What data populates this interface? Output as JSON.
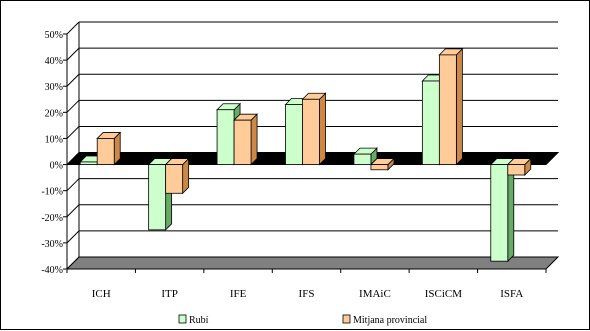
{
  "chart_data": {
    "type": "bar",
    "style": "3d-clustered-column",
    "categories": [
      "ICH",
      "ITP",
      "IFE",
      "IFS",
      "IMAiC",
      "ISCiCM",
      "ISFA"
    ],
    "series": [
      {
        "name": "Rubí",
        "values": [
          1,
          -25,
          21,
          23,
          4,
          32,
          -37
        ],
        "color": "#ccffcc",
        "side": "#66aa66"
      },
      {
        "name": "Mitjana provincial",
        "values": [
          10,
          -11,
          17,
          25,
          -2,
          42,
          -4
        ],
        "color": "#ffcc99",
        "side": "#cc8844"
      }
    ],
    "y_ticks": [
      "50%",
      "40%",
      "30%",
      "20%",
      "10%",
      "0%",
      "-10%",
      "-20%",
      "-30%",
      "-40%"
    ],
    "ylim": [
      -40,
      50
    ],
    "grid": true,
    "legend_position": "bottom",
    "colors": {
      "floor": "#808080",
      "zero_plane": "#000000",
      "grid": "#000000"
    }
  }
}
